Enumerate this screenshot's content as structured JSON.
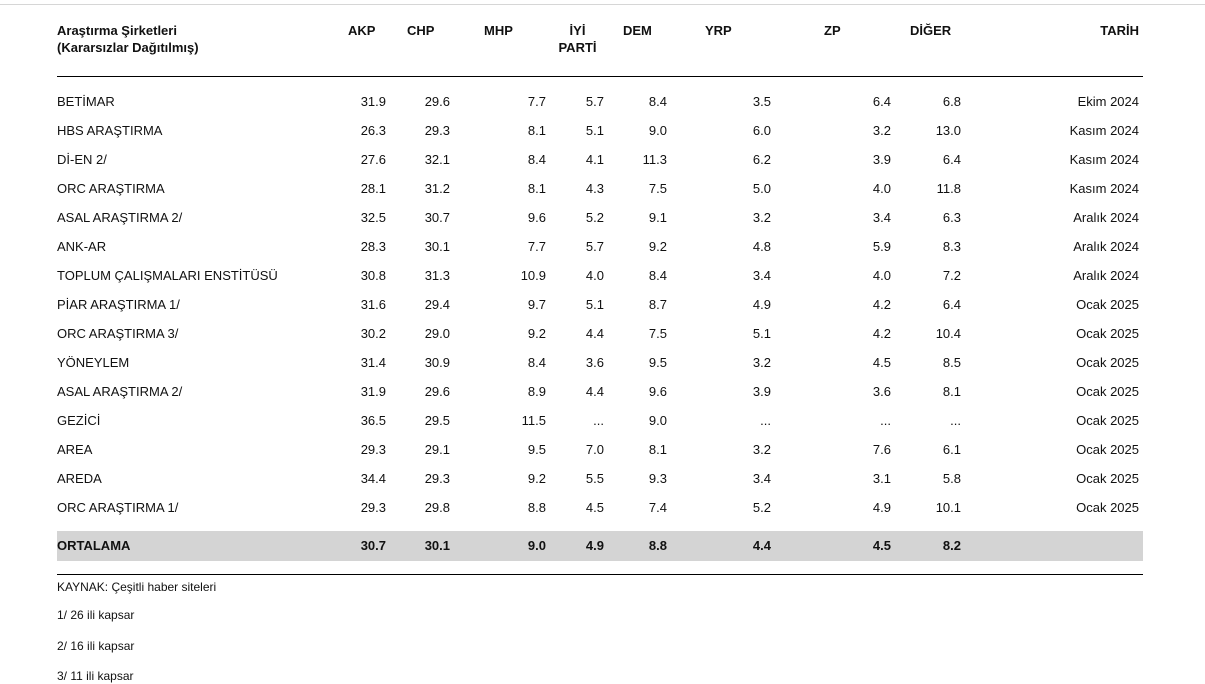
{
  "table": {
    "headers": {
      "company_line1": "Araştırma Şirketleri",
      "company_line2": "(Kararsızlar Dağıtılmış)",
      "akp": "AKP",
      "chp": "CHP",
      "mhp": "MHP",
      "iyi_line1": "İYİ",
      "iyi_line2": "PARTİ",
      "dem": "DEM",
      "yrp": "YRP",
      "zp": "ZP",
      "diger": "DİĞER",
      "tarih": "TARİH"
    },
    "rows": [
      {
        "name": "BETİMAR",
        "akp": "31.9",
        "chp": "29.6",
        "mhp": "7.7",
        "iyi": "5.7",
        "dem": "8.4",
        "yrp": "3.5",
        "zp": "6.4",
        "diger": "6.8",
        "tarih": "Ekim 2024"
      },
      {
        "name": "HBS ARAŞTIRMA",
        "akp": "26.3",
        "chp": "29.3",
        "mhp": "8.1",
        "iyi": "5.1",
        "dem": "9.0",
        "yrp": "6.0",
        "zp": "3.2",
        "diger": "13.0",
        "tarih": "Kasım 2024"
      },
      {
        "name": "Dİ-EN 2/",
        "akp": "27.6",
        "chp": "32.1",
        "mhp": "8.4",
        "iyi": "4.1",
        "dem": "11.3",
        "yrp": "6.2",
        "zp": "3.9",
        "diger": "6.4",
        "tarih": "Kasım 2024"
      },
      {
        "name": "ORC ARAŞTIRMA",
        "akp": "28.1",
        "chp": "31.2",
        "mhp": "8.1",
        "iyi": "4.3",
        "dem": "7.5",
        "yrp": "5.0",
        "zp": "4.0",
        "diger": "11.8",
        "tarih": "Kasım 2024"
      },
      {
        "name": "ASAL ARAŞTIRMA 2/",
        "akp": "32.5",
        "chp": "30.7",
        "mhp": "9.6",
        "iyi": "5.2",
        "dem": "9.1",
        "yrp": "3.2",
        "zp": "3.4",
        "diger": "6.3",
        "tarih": "Aralık 2024"
      },
      {
        "name": "ANK-AR",
        "akp": "28.3",
        "chp": "30.1",
        "mhp": "7.7",
        "iyi": "5.7",
        "dem": "9.2",
        "yrp": "4.8",
        "zp": "5.9",
        "diger": "8.3",
        "tarih": "Aralık 2024"
      },
      {
        "name": "TOPLUM ÇALIŞMALARI ENSTİTÜSÜ",
        "akp": "30.8",
        "chp": "31.3",
        "mhp": "10.9",
        "iyi": "4.0",
        "dem": "8.4",
        "yrp": "3.4",
        "zp": "4.0",
        "diger": "7.2",
        "tarih": "Aralık 2024"
      },
      {
        "name": "PİAR ARAŞTIRMA 1/",
        "akp": "31.6",
        "chp": "29.4",
        "mhp": "9.7",
        "iyi": "5.1",
        "dem": "8.7",
        "yrp": "4.9",
        "zp": "4.2",
        "diger": "6.4",
        "tarih": "Ocak 2025"
      },
      {
        "name": "ORC ARAŞTIRMA 3/",
        "akp": "30.2",
        "chp": "29.0",
        "mhp": "9.2",
        "iyi": "4.4",
        "dem": "7.5",
        "yrp": "5.1",
        "zp": "4.2",
        "diger": "10.4",
        "tarih": "Ocak 2025"
      },
      {
        "name": "YÖNEYLEM",
        "akp": "31.4",
        "chp": "30.9",
        "mhp": "8.4",
        "iyi": "3.6",
        "dem": "9.5",
        "yrp": "3.2",
        "zp": "4.5",
        "diger": "8.5",
        "tarih": "Ocak 2025"
      },
      {
        "name": "ASAL ARAŞTIRMA 2/",
        "akp": "31.9",
        "chp": "29.6",
        "mhp": "8.9",
        "iyi": "4.4",
        "dem": "9.6",
        "yrp": "3.9",
        "zp": "3.6",
        "diger": "8.1",
        "tarih": "Ocak 2025"
      },
      {
        "name": "GEZİCİ",
        "akp": "36.5",
        "chp": "29.5",
        "mhp": "11.5",
        "iyi": "...",
        "dem": "9.0",
        "yrp": "...",
        "zp": "...",
        "diger": "...",
        "tarih": "Ocak 2025"
      },
      {
        "name": "AREA",
        "akp": "29.3",
        "chp": "29.1",
        "mhp": "9.5",
        "iyi": "7.0",
        "dem": "8.1",
        "yrp": "3.2",
        "zp": "7.6",
        "diger": "6.1",
        "tarih": "Ocak 2025"
      },
      {
        "name": "AREDA",
        "akp": "34.4",
        "chp": "29.3",
        "mhp": "9.2",
        "iyi": "5.5",
        "dem": "9.3",
        "yrp": "3.4",
        "zp": "3.1",
        "diger": "5.8",
        "tarih": "Ocak 2025"
      },
      {
        "name": "ORC ARAŞTIRMA 1/",
        "akp": "29.3",
        "chp": "29.8",
        "mhp": "8.8",
        "iyi": "4.5",
        "dem": "7.4",
        "yrp": "5.2",
        "zp": "4.9",
        "diger": "10.1",
        "tarih": "Ocak 2025"
      }
    ],
    "average": {
      "name": "ORTALAMA",
      "akp": "30.7",
      "chp": "30.1",
      "mhp": "9.0",
      "iyi": "4.9",
      "dem": "8.8",
      "yrp": "4.4",
      "zp": "4.5",
      "diger": "8.2",
      "tarih": ""
    }
  },
  "footnotes": {
    "source": "KAYNAK: Çeşitli haber siteleri",
    "note1": "1/ 26 ili kapsar",
    "note2": "2/ 16 ili kapsar",
    "note3": "3/ 11 ili kapsar"
  }
}
